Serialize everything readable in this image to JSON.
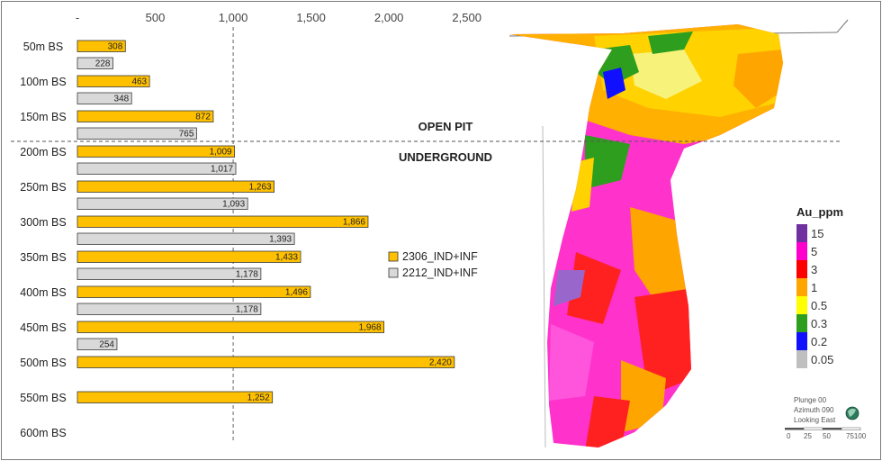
{
  "chart_data": {
    "type": "bar",
    "orientation": "horizontal",
    "title": "",
    "xlabel": "",
    "ylabel": "",
    "xlim": [
      0,
      2600
    ],
    "x_ticks": [
      {
        "value": 0,
        "label": "-"
      },
      {
        "value": 500,
        "label": "500"
      },
      {
        "value": 1000,
        "label": "1,000"
      },
      {
        "value": 1500,
        "label": "1,500"
      },
      {
        "value": 2000,
        "label": "2,000"
      },
      {
        "value": 2500,
        "label": "2,500"
      }
    ],
    "categories": [
      "50m BS",
      "100m BS",
      "150m BS",
      "200m BS",
      "250m BS",
      "300m BS",
      "350m BS",
      "400m BS",
      "450m BS",
      "500m BS",
      "550m BS",
      "600m BS"
    ],
    "series": [
      {
        "name": "2306_IND+INF",
        "color": "#FFC000",
        "values": [
          308,
          463,
          872,
          1009,
          1263,
          1866,
          1433,
          1496,
          1968,
          2420,
          1252,
          null
        ],
        "labels": [
          "308",
          "463",
          "872",
          "1,009",
          "1,263",
          "1,866",
          "1,433",
          "1,496",
          "1,968",
          "2,420",
          "1,252",
          ""
        ]
      },
      {
        "name": "2212_IND+INF",
        "color": "#D9D9D9",
        "values": [
          228,
          348,
          765,
          1017,
          1093,
          1393,
          1178,
          1178,
          254,
          null,
          null,
          null
        ],
        "labels": [
          "228",
          "348",
          "765",
          "1,017",
          "1,093",
          "1,393",
          "1,178",
          "1,178",
          "254",
          "",
          "",
          ""
        ]
      }
    ],
    "reference_line_x": 1000,
    "legend_position": "right",
    "annotations": [
      "OPEN PIT",
      "UNDERGROUND"
    ]
  },
  "colorbar": {
    "title": "Au_ppm",
    "entries": [
      {
        "label": "15",
        "color": "#7030A0"
      },
      {
        "label": "5",
        "color": "#FF00CC"
      },
      {
        "label": "3",
        "color": "#FF0000"
      },
      {
        "label": "1",
        "color": "#FFA500"
      },
      {
        "label": "0.5",
        "color": "#FFFF00"
      },
      {
        "label": "0.3",
        "color": "#2E9E1E"
      },
      {
        "label": "0.2",
        "color": "#1010FF"
      },
      {
        "label": "0.05",
        "color": "#BFBFBF"
      }
    ]
  },
  "orientation": {
    "plunge": "Plunge 00",
    "azimuth": "Azimuth 090",
    "looking": "Looking East",
    "scale": [
      "0",
      "25",
      "50",
      "75100"
    ]
  }
}
